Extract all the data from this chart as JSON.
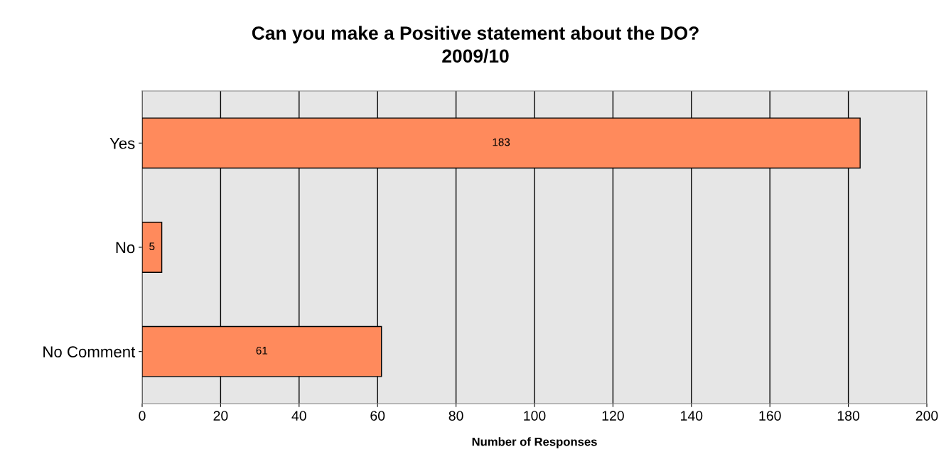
{
  "chart_data": {
    "type": "bar",
    "orientation": "horizontal",
    "title": "Can you make a Positive statement about the DO?\n2009/10",
    "xlabel": "Number of Responses",
    "categories": [
      "Yes",
      "No",
      "No Comment"
    ],
    "values": [
      183,
      5,
      61
    ],
    "color": "#ff8a5c",
    "xlim": [
      0,
      200
    ],
    "xticks": [
      0,
      20,
      40,
      60,
      80,
      100,
      120,
      140,
      160,
      180,
      200
    ],
    "grid": "x",
    "data_labels": true
  }
}
